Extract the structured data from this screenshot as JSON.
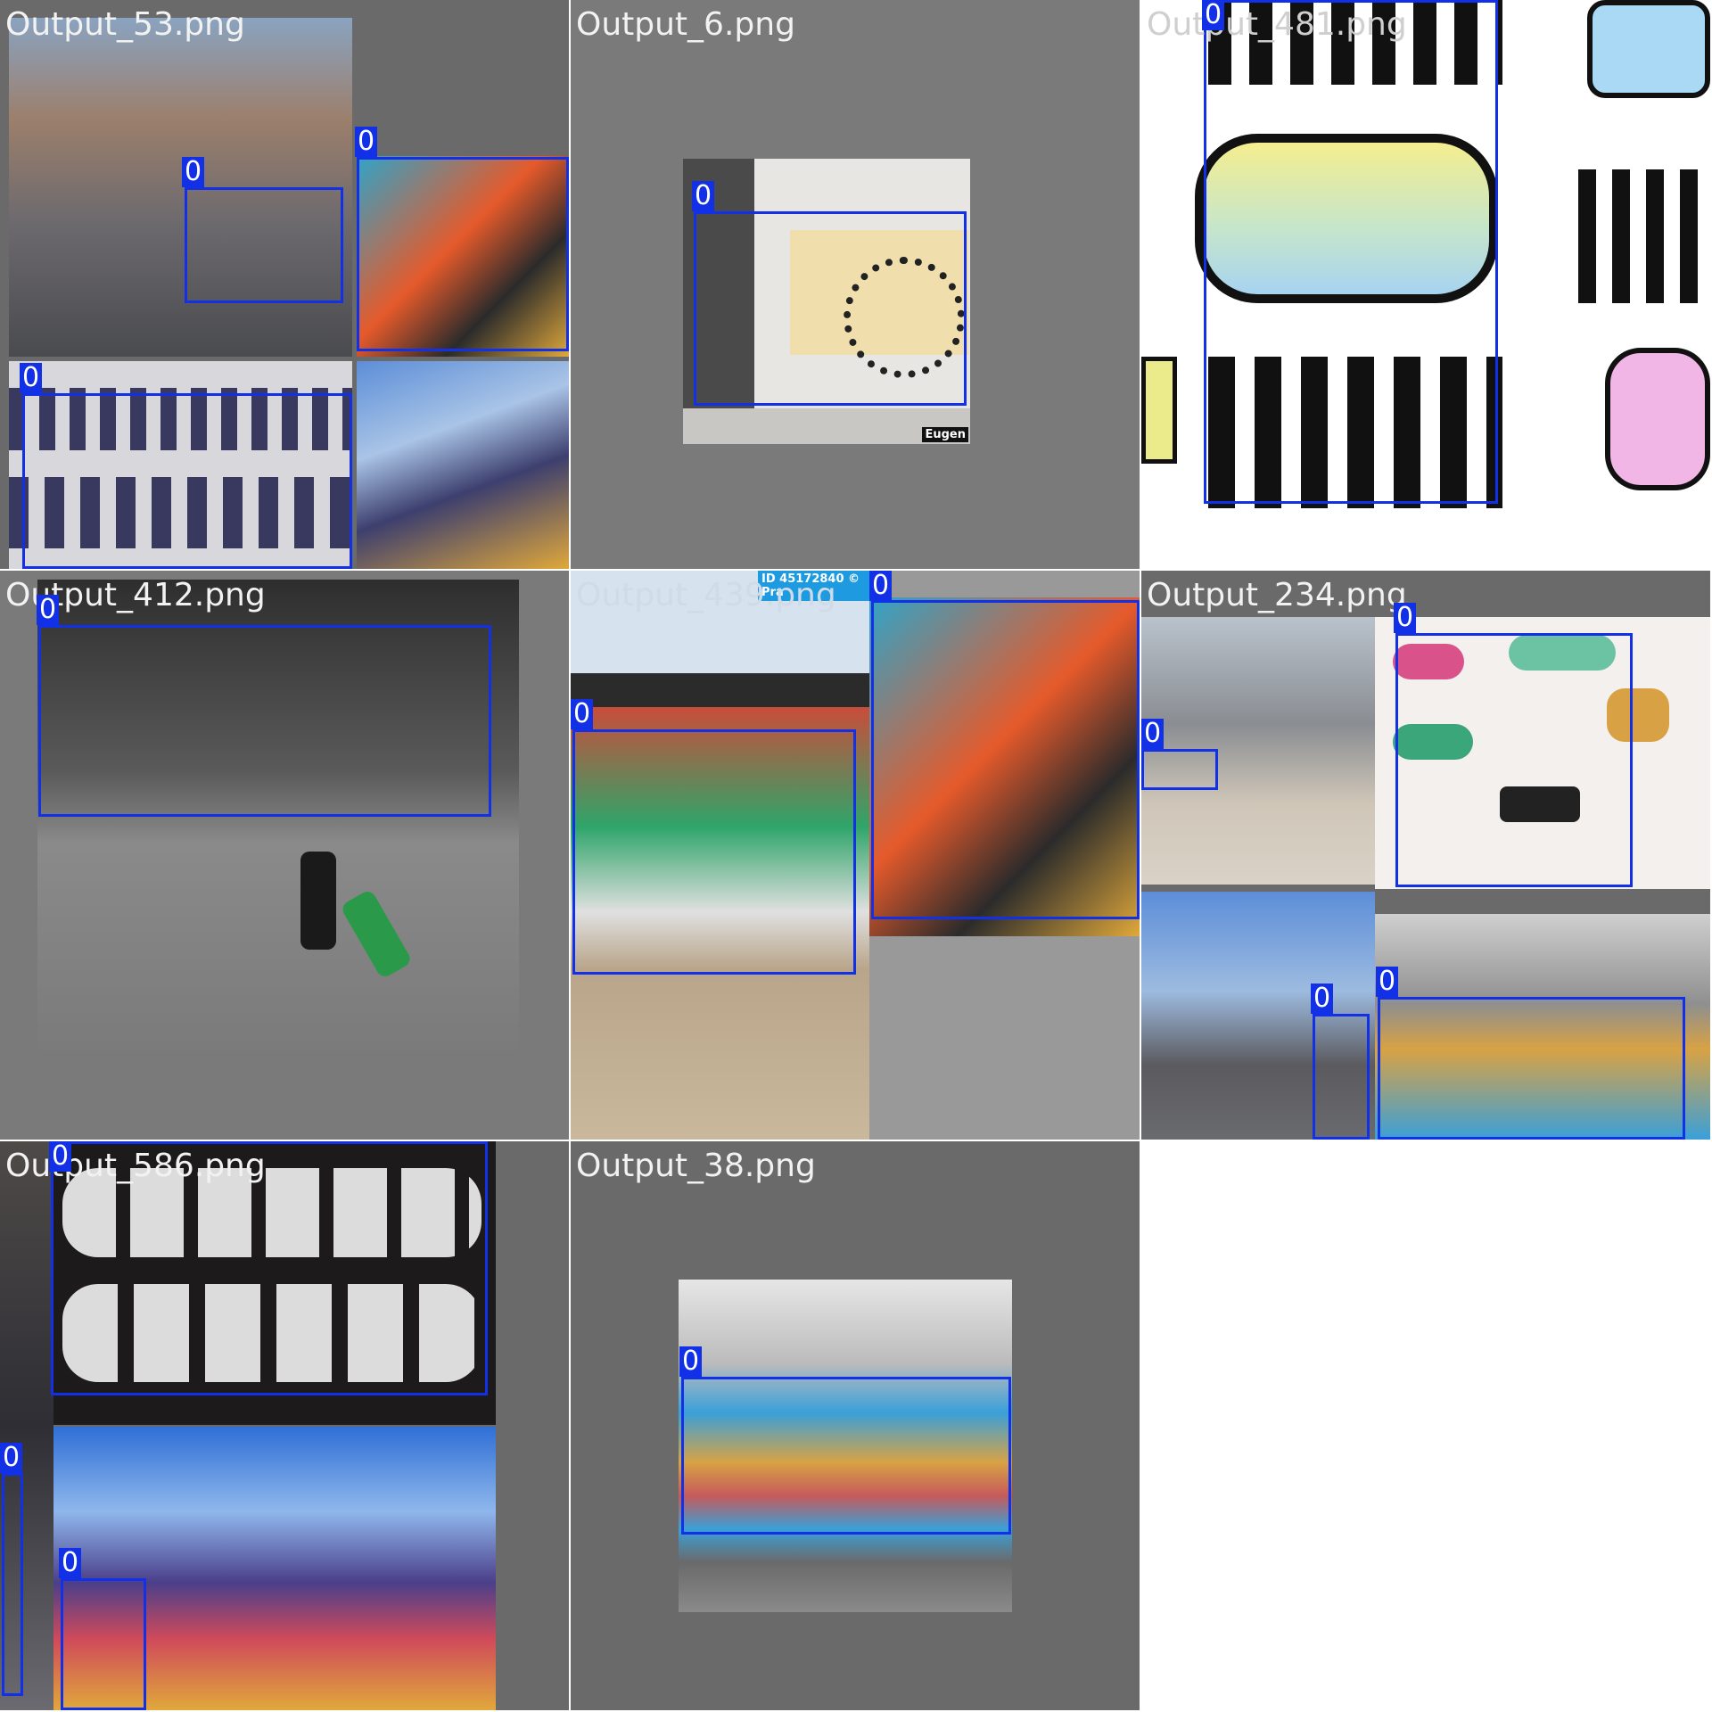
{
  "tiles": [
    {
      "filename": "Output_53.png",
      "labels": [
        "0",
        "0",
        "0"
      ]
    },
    {
      "filename": "Output_6.png",
      "labels": [
        "0"
      ],
      "watermark": "Eugen"
    },
    {
      "filename": "Output_481.png",
      "labels": [
        "0"
      ]
    },
    {
      "filename": "Output_412.png",
      "labels": [
        "0"
      ]
    },
    {
      "filename": "Output_439.png",
      "labels": [
        "0",
        "0"
      ],
      "banner": "ID 45172840 © Pra"
    },
    {
      "filename": "Output_234.png",
      "labels": [
        "0",
        "0",
        "0",
        "0"
      ]
    },
    {
      "filename": "Output_586.png",
      "labels": [
        "0",
        "0",
        "0"
      ]
    },
    {
      "filename": "Output_38.png",
      "labels": [
        "0"
      ]
    }
  ],
  "colors": {
    "box": "#1230e6",
    "tile_bg": "#777777"
  }
}
